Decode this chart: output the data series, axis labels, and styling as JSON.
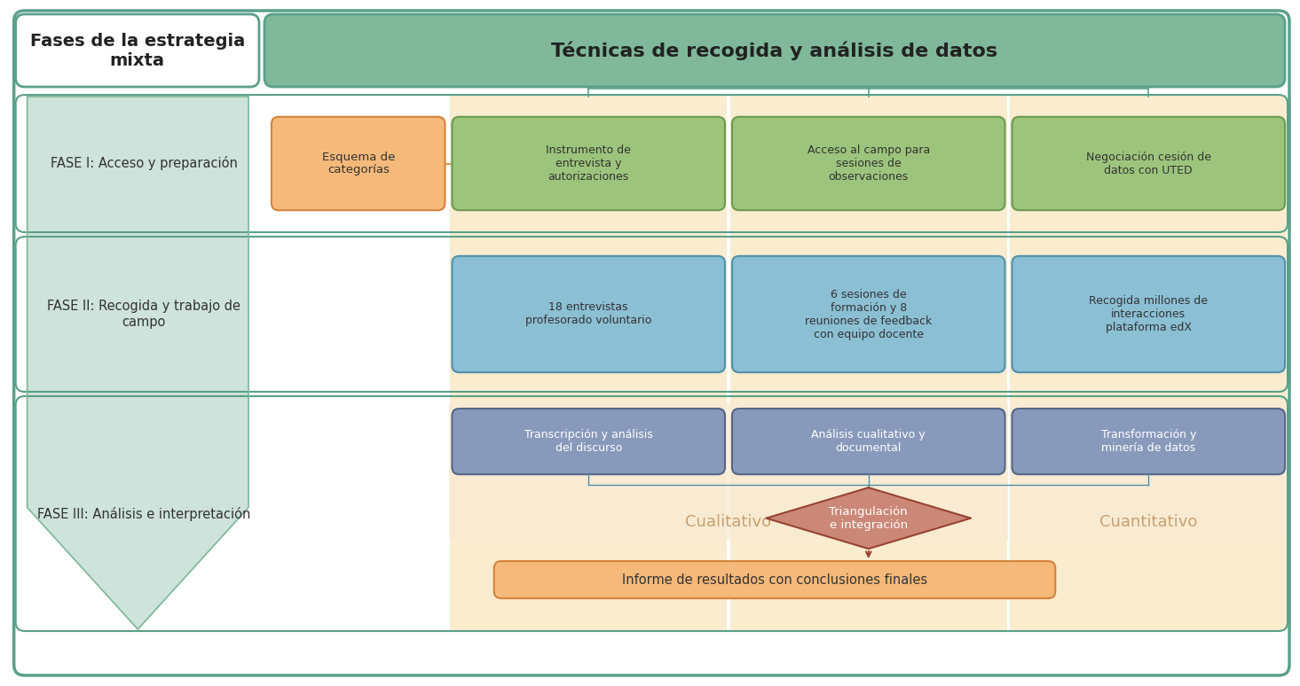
{
  "bg": "#ffffff",
  "border_color": "#5ba08a",
  "header_left": "Fases de la estrategia\nmixta",
  "header_right": "Técnicas de recogida y análisis de datos",
  "header_right_fill": "#7fb89a",
  "fase1_label": "FASE I: Acceso y preparación",
  "fase2_label": "FASE II: Recogida y trabajo de\ncampo",
  "fase3_label": "FASE III: Análisis e interpretación",
  "arrow_fill": "#b8d8cc",
  "arrow_edge": "#7fb89a",
  "stripe_fill": "#f5e0b0",
  "box_orange_fill": "#f5b97a",
  "box_orange_edge": "#d4833a",
  "box_green_fill": "#9dc47c",
  "box_green_edge": "#6a9a50",
  "box_blue_fill": "#8bbfd4",
  "box_blue_edge": "#5090aa",
  "box_slate_fill": "#8899bb",
  "box_slate_edge": "#556688",
  "box_diamond_fill": "#cc8877",
  "box_diamond_edge": "#994433",
  "box_result_fill": "#f5b97a",
  "box_result_edge": "#d4833a",
  "fase1_box0": "Esquema de\ncategorías",
  "fase1_box1": "Instrumento de\nentrevista y\nautorizaciones",
  "fase1_box2": "Acceso al campo para\nsesiones de\nobservaciones",
  "fase1_box3": "Negociación cesión de\ndatos con UTED",
  "fase2_box0": "18 entrevistas\nprofesorado voluntario",
  "fase2_box1": "6 sesiones de\nformación y 8\nreuniones de feedback\ncon equipo docente",
  "fase2_box2": "Recogida millones de\ninteracciones\nplataforma edX",
  "fase3_box0": "Transcripción y análisis\ndel discurso",
  "fase3_box1": "Análisis cualitativo y\ndocumental",
  "fase3_box2": "Transformación y\nminería de datos",
  "cual_label": "Cualitativo",
  "cuant_label": "Cuantitativo",
  "tri_label": "Triangulación\ne integración",
  "result_label": "Informe de resultados con conclusiones finales",
  "line_color": "#5ba08a",
  "connect_color": "#5090aa",
  "zone_fill": "#faebd4",
  "zone_text_color": "#c8a070"
}
